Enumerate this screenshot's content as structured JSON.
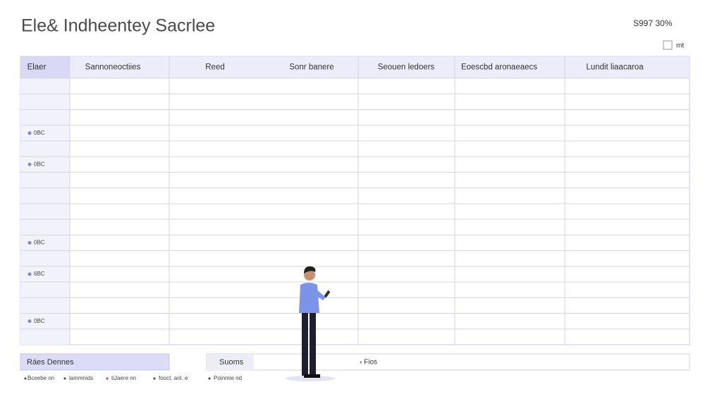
{
  "header": {
    "title": "Ele& Indheentey  Sacrlee",
    "status": "S997 30%",
    "checkbox_label": "mt"
  },
  "table": {
    "headers": [
      "Elaer",
      "Sannoneoctiies",
      "Reed",
      "Sonr banere",
      "Seouen ledoers",
      "Eoescbd aronaeaecs",
      "Lundit liaacaroa"
    ],
    "row_labels": [
      null,
      null,
      null,
      "0BC",
      null,
      "0BC",
      null,
      null,
      null,
      null,
      "0BC",
      null,
      "6BC",
      null,
      null,
      "0BC",
      null
    ]
  },
  "footer": {
    "button": "Ráes Dennes",
    "search_label": "Suoms",
    "search_text": "‹ Fios",
    "legend": [
      "Bceebe nn",
      "lammnids",
      "tiJaere nn",
      "fooct. anl. e",
      "Poinmie nd"
    ]
  }
}
